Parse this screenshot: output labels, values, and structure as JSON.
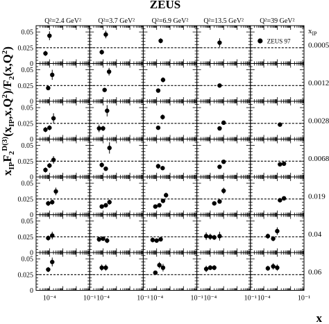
{
  "chart_data": {
    "type": "scatter",
    "title": "ZEUS",
    "xlabel": "x",
    "ylabel": "x_IP F_2^D(3)(x_IP,x,Q^2)/F_2(x,Q^2)",
    "row_param_label": "x_IP",
    "col_headers": [
      "Q²=2.4 GeV²",
      "Q²=3.7 GeV²",
      "Q²=6.9 GeV²",
      "Q²=13.5 GeV²",
      "Q²=39 GeV²"
    ],
    "row_labels": [
      "0.0005",
      "0.0012",
      "0.0028",
      "0.0068",
      "0.019",
      "0.04",
      "0.06"
    ],
    "legend": {
      "label": "ZEUS 97",
      "position": "top-right panel"
    },
    "x_log": true,
    "xlim": [
      1e-05,
      0.1
    ],
    "x_tick_labels": [
      "10⁻⁴",
      "10⁻¹"
    ],
    "ylim": [
      0,
      0.06
    ],
    "y_tick_labels": [
      "0.025",
      "0.05"
    ],
    "reference_line_y": 0.025,
    "panels": [
      {
        "row": 0,
        "col": 0,
        "points": [
          {
            "x": 5e-05,
            "y": 0.016,
            "err": 0.004
          },
          {
            "x": 0.0001,
            "y": 0.044,
            "err": 0.007
          }
        ]
      },
      {
        "row": 0,
        "col": 1,
        "points": [
          {
            "x": 8e-05,
            "y": 0.018,
            "err": 0.004
          },
          {
            "x": 0.00016,
            "y": 0.046,
            "err": 0.006
          }
        ]
      },
      {
        "row": 0,
        "col": 2,
        "points": [
          {
            "x": 0.0002,
            "y": 0.036,
            "err": 0.004
          }
        ]
      },
      {
        "row": 0,
        "col": 3,
        "points": [
          {
            "x": 0.0005,
            "y": 0.033,
            "err": 0.007
          }
        ]
      },
      {
        "row": 0,
        "col": 4,
        "points": []
      },
      {
        "row": 1,
        "col": 0,
        "points": [
          {
            "x": 8e-05,
            "y": 0.021,
            "err": 0.003
          },
          {
            "x": 0.00016,
            "y": 0.042,
            "err": 0.008
          }
        ]
      },
      {
        "row": 1,
        "col": 1,
        "points": [
          {
            "x": 0.00013,
            "y": 0.018,
            "err": 0.003
          },
          {
            "x": 0.00028,
            "y": 0.047,
            "err": 0.006
          }
        ]
      },
      {
        "row": 1,
        "col": 2,
        "points": [
          {
            "x": 0.00013,
            "y": 0.017,
            "err": 0.003
          },
          {
            "x": 0.0003,
            "y": 0.034,
            "err": 0.004
          }
        ]
      },
      {
        "row": 1,
        "col": 3,
        "points": [
          {
            "x": 0.0005,
            "y": 0.025,
            "err": 0.002
          }
        ]
      },
      {
        "row": 1,
        "col": 4,
        "points": []
      },
      {
        "row": 2,
        "col": 0,
        "points": [
          {
            "x": 5e-05,
            "y": 0.015,
            "err": 0.004
          },
          {
            "x": 0.0001,
            "y": 0.018,
            "err": 0.004
          },
          {
            "x": 0.0002,
            "y": 0.033,
            "err": 0.008
          }
        ]
      },
      {
        "row": 2,
        "col": 1,
        "points": [
          {
            "x": 5e-05,
            "y": 0.017,
            "err": 0.006
          },
          {
            "x": 0.0001,
            "y": 0.017,
            "err": 0.004
          },
          {
            "x": 0.0002,
            "y": 0.045,
            "err": 0.009
          }
        ]
      },
      {
        "row": 2,
        "col": 2,
        "points": [
          {
            "x": 0.00013,
            "y": 0.018,
            "err": 0.003
          },
          {
            "x": 0.00028,
            "y": 0.035,
            "err": 0.004
          }
        ]
      },
      {
        "row": 2,
        "col": 3,
        "points": [
          {
            "x": 0.0005,
            "y": 0.017,
            "err": 0.003
          },
          {
            "x": 0.001,
            "y": 0.026,
            "err": 0.003
          }
        ]
      },
      {
        "row": 2,
        "col": 4,
        "points": [
          {
            "x": 0.0016,
            "y": 0.023,
            "err": 0.003
          }
        ]
      },
      {
        "row": 3,
        "col": 0,
        "points": [
          {
            "x": 5e-05,
            "y": 0.011,
            "err": 0.004
          },
          {
            "x": 0.0001,
            "y": 0.018,
            "err": 0.004
          },
          {
            "x": 0.0002,
            "y": 0.027,
            "err": 0.006
          }
        ]
      },
      {
        "row": 3,
        "col": 1,
        "points": [
          {
            "x": 8e-05,
            "y": 0.019,
            "err": 0.004
          },
          {
            "x": 0.00016,
            "y": 0.013,
            "err": 0.003
          },
          {
            "x": 0.0003,
            "y": 0.046,
            "err": 0.009
          }
        ]
      },
      {
        "row": 3,
        "col": 2,
        "points": [
          {
            "x": 0.00013,
            "y": 0.017,
            "err": 0.004
          },
          {
            "x": 0.00028,
            "y": 0.014,
            "err": 0.003
          }
        ]
      },
      {
        "row": 3,
        "col": 3,
        "points": [
          {
            "x": 0.0005,
            "y": 0.016,
            "err": 0.003
          },
          {
            "x": 0.001,
            "y": 0.024,
            "err": 0.003
          }
        ]
      },
      {
        "row": 3,
        "col": 4,
        "points": [
          {
            "x": 0.0016,
            "y": 0.02,
            "err": 0.003
          },
          {
            "x": 0.0032,
            "y": 0.021,
            "err": 0.003
          }
        ]
      },
      {
        "row": 4,
        "col": 0,
        "points": [
          {
            "x": 8e-05,
            "y": 0.018,
            "err": 0.004
          },
          {
            "x": 0.00016,
            "y": 0.02,
            "err": 0.004
          },
          {
            "x": 0.0003,
            "y": 0.037,
            "err": 0.006
          }
        ]
      },
      {
        "row": 4,
        "col": 1,
        "points": [
          {
            "x": 8e-05,
            "y": 0.013,
            "err": 0.003
          },
          {
            "x": 0.00016,
            "y": 0.015,
            "err": 0.003
          },
          {
            "x": 0.0003,
            "y": 0.02,
            "err": 0.004
          }
        ]
      },
      {
        "row": 4,
        "col": 2,
        "points": [
          {
            "x": 8e-05,
            "y": 0.013,
            "err": 0.003
          },
          {
            "x": 0.00016,
            "y": 0.015,
            "err": 0.003
          },
          {
            "x": 0.0003,
            "y": 0.022,
            "err": 0.003
          },
          {
            "x": 0.0005,
            "y": 0.031,
            "err": 0.004
          }
        ]
      },
      {
        "row": 4,
        "col": 3,
        "points": [
          {
            "x": 0.0002,
            "y": 0.018,
            "err": 0.003
          },
          {
            "x": 0.0005,
            "y": 0.021,
            "err": 0.003
          },
          {
            "x": 0.001,
            "y": 0.038,
            "err": 0.005
          }
        ]
      },
      {
        "row": 4,
        "col": 4,
        "points": [
          {
            "x": 0.0016,
            "y": 0.023,
            "err": 0.003
          },
          {
            "x": 0.0032,
            "y": 0.026,
            "err": 0.003
          }
        ]
      },
      {
        "row": 5,
        "col": 0,
        "points": [
          {
            "x": 8e-05,
            "y": 0.023,
            "err": 0.004
          },
          {
            "x": 0.00016,
            "y": 0.027,
            "err": 0.006
          }
        ]
      },
      {
        "row": 5,
        "col": 1,
        "points": [
          {
            "x": 5e-05,
            "y": 0.021,
            "err": 0.004
          },
          {
            "x": 0.0001,
            "y": 0.022,
            "err": 0.003
          },
          {
            "x": 0.0002,
            "y": 0.019,
            "err": 0.004
          }
        ]
      },
      {
        "row": 5,
        "col": 2,
        "points": [
          {
            "x": 5e-05,
            "y": 0.02,
            "err": 0.004
          },
          {
            "x": 0.0001,
            "y": 0.019,
            "err": 0.003
          },
          {
            "x": 0.0002,
            "y": 0.021,
            "err": 0.003
          }
        ]
      },
      {
        "row": 5,
        "col": 3,
        "points": [
          {
            "x": 5e-05,
            "y": 0.026,
            "err": 0.006
          },
          {
            "x": 0.0001,
            "y": 0.025,
            "err": 0.005
          },
          {
            "x": 0.0002,
            "y": 0.024,
            "err": 0.004
          },
          {
            "x": 0.0005,
            "y": 0.026,
            "err": 0.007
          }
        ]
      },
      {
        "row": 5,
        "col": 4,
        "points": [
          {
            "x": 0.0002,
            "y": 0.026,
            "err": 0.004
          },
          {
            "x": 0.0005,
            "y": 0.022,
            "err": 0.004
          },
          {
            "x": 0.001,
            "y": 0.034,
            "err": 0.006
          }
        ]
      },
      {
        "row": 6,
        "col": 0,
        "points": [
          {
            "x": 8e-05,
            "y": 0.033,
            "err": 0.004
          },
          {
            "x": 0.00016,
            "y": 0.045,
            "err": 0.007
          }
        ]
      },
      {
        "row": 6,
        "col": 1,
        "points": [
          {
            "x": 8e-05,
            "y": 0.036,
            "err": 0.005
          },
          {
            "x": 0.00016,
            "y": 0.036,
            "err": 0.005
          }
        ]
      },
      {
        "row": 6,
        "col": 2,
        "points": [
          {
            "x": 8e-05,
            "y": 0.028,
            "err": 0.002
          },
          {
            "x": 0.00016,
            "y": 0.04,
            "err": 0.005
          },
          {
            "x": 0.0003,
            "y": 0.036,
            "err": 0.006
          }
        ]
      },
      {
        "row": 6,
        "col": 3,
        "points": [
          {
            "x": 5e-05,
            "y": 0.034,
            "err": 0.005
          },
          {
            "x": 0.0001,
            "y": 0.036,
            "err": 0.004
          },
          {
            "x": 0.0002,
            "y": 0.036,
            "err": 0.004
          }
        ]
      },
      {
        "row": 6,
        "col": 4,
        "points": [
          {
            "x": 0.0002,
            "y": 0.035,
            "err": 0.004
          },
          {
            "x": 0.0005,
            "y": 0.038,
            "err": 0.005
          },
          {
            "x": 0.001,
            "y": 0.036,
            "err": 0.005
          }
        ]
      }
    ]
  }
}
